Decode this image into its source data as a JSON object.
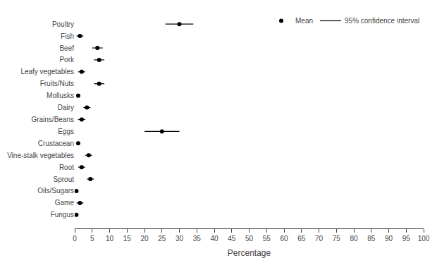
{
  "chart_data": {
    "type": "dot",
    "orientation": "horizontal",
    "xlabel": "Percentage",
    "categories": [
      "Poultry",
      "Fish",
      "Beef",
      "Pork",
      "Leafy vegetables",
      "Fruits/Nuts",
      "Mollusks",
      "Dairy",
      "Grains/Beans",
      "Eggs",
      "Crustacean",
      "Vine-stalk vegetables",
      "Root",
      "Sprout",
      "Oils/Sugars",
      "Game",
      "Fungus"
    ],
    "series": [
      {
        "name": "Mean",
        "type": "scatter",
        "marker": "circle",
        "color": "black",
        "values": [
          30,
          1.5,
          6.5,
          7,
          2,
          7,
          1,
          3.5,
          2,
          25,
          1,
          4,
          2,
          4.5,
          0.5,
          1.5,
          0.5
        ]
      },
      {
        "name": "95% confidence interval",
        "type": "error_bar",
        "color": "black",
        "low": [
          26,
          0.5,
          5.0,
          5.5,
          1.0,
          5.5,
          0.5,
          2.5,
          1.0,
          20,
          0.5,
          3.0,
          1.0,
          3.5,
          0.5,
          0.5,
          0.5
        ],
        "high": [
          34,
          2.5,
          8.0,
          8.5,
          3.0,
          8.5,
          1.5,
          4.5,
          3.0,
          30,
          1.5,
          5.0,
          3.0,
          5.5,
          0.5,
          2.5,
          0.5
        ]
      }
    ],
    "xlim": [
      0,
      100
    ],
    "xticks": [
      0,
      5,
      10,
      15,
      20,
      25,
      30,
      35,
      40,
      45,
      50,
      55,
      60,
      65,
      70,
      75,
      80,
      85,
      90,
      95,
      100
    ],
    "grid": false,
    "legend": "upper right"
  }
}
